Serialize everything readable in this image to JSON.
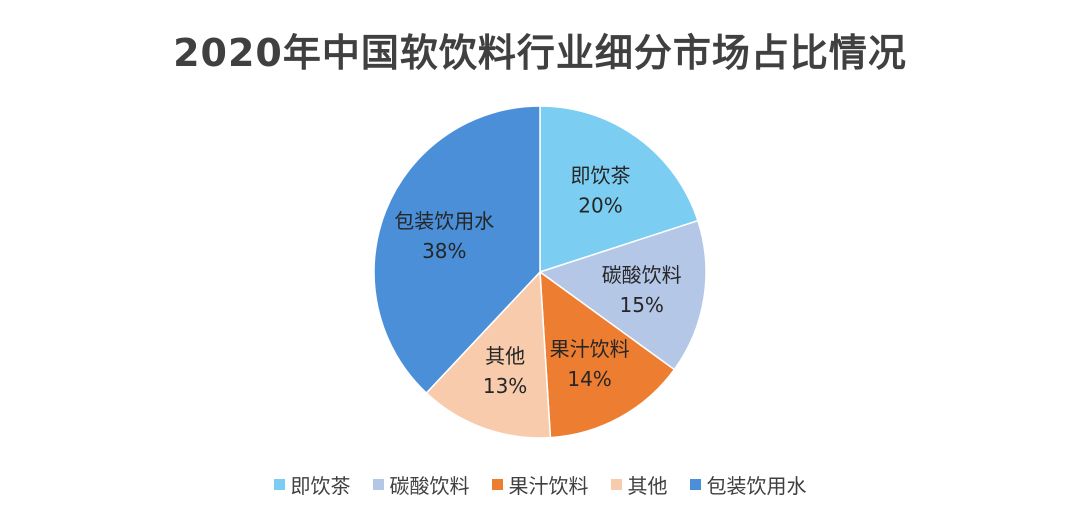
{
  "chart_data": {
    "type": "pie",
    "title": "2020年中国软饮料行业细分市场占比情况",
    "slices": [
      {
        "label": "即饮茶",
        "value": 20,
        "value_text": "20%",
        "color": "#7ccdf2"
      },
      {
        "label": "碳酸饮料",
        "value": 15,
        "value_text": "15%",
        "color": "#b4c7e7"
      },
      {
        "label": "果汁饮料",
        "value": 14,
        "value_text": "14%",
        "color": "#ed7d31"
      },
      {
        "label": "其他",
        "value": 13,
        "value_text": "13%",
        "color": "#f8cbad"
      },
      {
        "label": "包装饮用水",
        "value": 38,
        "value_text": "38%",
        "color": "#4a8fd8"
      }
    ],
    "legend_position": "bottom"
  }
}
